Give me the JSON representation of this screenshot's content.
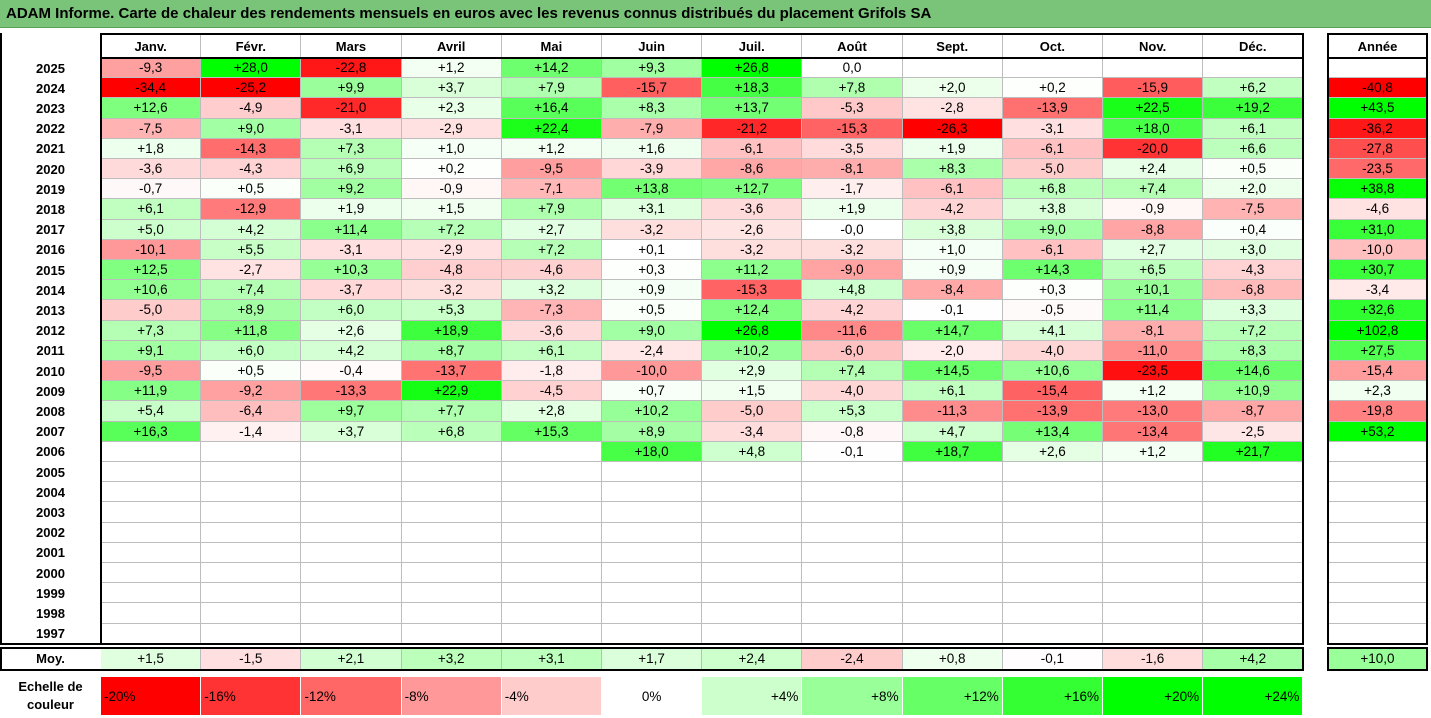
{
  "title": "ADAM Informe. Carte de chaleur des rendements mensuels en euros avec les revenus connus distribués du placement Grifols SA",
  "months": [
    "Janv.",
    "Févr.",
    "Mars",
    "Avril",
    "Mai",
    "Juin",
    "Juil.",
    "Août",
    "Sept.",
    "Oct.",
    "Nov.",
    "Déc."
  ],
  "year_label": "Année",
  "avg_label": "Moy.",
  "scale_label_line1": "Echelle de",
  "scale_label_line2": "couleur",
  "colors": {
    "negative_max": "#ff0000",
    "neutral": "#ffffff",
    "positive_max": "#00ff00"
  },
  "chart_data": {
    "type": "heatmap",
    "title": "ADAM Informe. Carte de chaleur des rendements mensuels en euros avec les revenus connus distribués du placement Grifols SA",
    "columns": [
      "Janv.",
      "Févr.",
      "Mars",
      "Avril",
      "Mai",
      "Juin",
      "Juil.",
      "Août",
      "Sept.",
      "Oct.",
      "Nov.",
      "Déc."
    ],
    "rows": [
      {
        "year": "2025",
        "values": [
          "-9,3",
          "+28,0",
          "-22,8",
          "+1,2",
          "+14,2",
          "+9,3",
          "+26,8",
          "0,0",
          "",
          "",
          "",
          ""
        ],
        "annual": ""
      },
      {
        "year": "2024",
        "values": [
          "-34,4",
          "-25,2",
          "+9,9",
          "+3,7",
          "+7,9",
          "-15,7",
          "+18,3",
          "+7,8",
          "+2,0",
          "+0,2",
          "-15,9",
          "+6,2"
        ],
        "annual": "-40,8"
      },
      {
        "year": "2023",
        "values": [
          "+12,6",
          "-4,9",
          "-21,0",
          "+2,3",
          "+16,4",
          "+8,3",
          "+13,7",
          "-5,3",
          "-2,8",
          "-13,9",
          "+22,5",
          "+19,2"
        ],
        "annual": "+43,5"
      },
      {
        "year": "2022",
        "values": [
          "-7,5",
          "+9,0",
          "-3,1",
          "-2,9",
          "+22,4",
          "-7,9",
          "-21,2",
          "-15,3",
          "-26,3",
          "-3,1",
          "+18,0",
          "+6,1"
        ],
        "annual": "-36,2"
      },
      {
        "year": "2021",
        "values": [
          "+1,8",
          "-14,3",
          "+7,3",
          "+1,0",
          "+1,2",
          "+1,6",
          "-6,1",
          "-3,5",
          "+1,9",
          "-6,1",
          "-20,0",
          "+6,6"
        ],
        "annual": "-27,8"
      },
      {
        "year": "2020",
        "values": [
          "-3,6",
          "-4,3",
          "+6,9",
          "+0,2",
          "-9,5",
          "-3,9",
          "-8,6",
          "-8,1",
          "+8,3",
          "-5,0",
          "+2,4",
          "+0,5"
        ],
        "annual": "-23,5"
      },
      {
        "year": "2019",
        "values": [
          "-0,7",
          "+0,5",
          "+9,2",
          "-0,9",
          "-7,1",
          "+13,8",
          "+12,7",
          "-1,7",
          "-6,1",
          "+6,8",
          "+7,4",
          "+2,0"
        ],
        "annual": "+38,8"
      },
      {
        "year": "2018",
        "values": [
          "+6,1",
          "-12,9",
          "+1,9",
          "+1,5",
          "+7,9",
          "+3,1",
          "-3,6",
          "+1,9",
          "-4,2",
          "+3,8",
          "-0,9",
          "-7,5"
        ],
        "annual": "-4,6"
      },
      {
        "year": "2017",
        "values": [
          "+5,0",
          "+4,2",
          "+11,4",
          "+7,2",
          "+2,7",
          "-3,2",
          "-2,6",
          "-0,0",
          "+3,8",
          "+9,0",
          "-8,8",
          "+0,4"
        ],
        "annual": "+31,0"
      },
      {
        "year": "2016",
        "values": [
          "-10,1",
          "+5,5",
          "-3,1",
          "-2,9",
          "+7,2",
          "+0,1",
          "-3,2",
          "-3,2",
          "+1,0",
          "-6,1",
          "+2,7",
          "+3,0"
        ],
        "annual": "-10,0"
      },
      {
        "year": "2015",
        "values": [
          "+12,5",
          "-2,7",
          "+10,3",
          "-4,8",
          "-4,6",
          "+0,3",
          "+11,2",
          "-9,0",
          "+0,9",
          "+14,3",
          "+6,5",
          "-4,3"
        ],
        "annual": "+30,7"
      },
      {
        "year": "2014",
        "values": [
          "+10,6",
          "+7,4",
          "-3,7",
          "-3,2",
          "+3,2",
          "+0,9",
          "-15,3",
          "+4,8",
          "-8,4",
          "+0,3",
          "+10,1",
          "-6,8"
        ],
        "annual": "-3,4"
      },
      {
        "year": "2013",
        "values": [
          "-5,0",
          "+8,9",
          "+6,0",
          "+5,3",
          "-7,3",
          "+0,5",
          "+12,4",
          "-4,2",
          "-0,1",
          "-0,5",
          "+11,4",
          "+3,3"
        ],
        "annual": "+32,6"
      },
      {
        "year": "2012",
        "values": [
          "+7,3",
          "+11,8",
          "+2,6",
          "+18,9",
          "-3,6",
          "+9,0",
          "+26,8",
          "-11,6",
          "+14,7",
          "+4,1",
          "-8,1",
          "+7,2"
        ],
        "annual": "+102,8"
      },
      {
        "year": "2011",
        "values": [
          "+9,1",
          "+6,0",
          "+4,2",
          "+8,7",
          "+6,1",
          "-2,4",
          "+10,2",
          "-6,0",
          "-2,0",
          "-4,0",
          "-11,0",
          "+8,3"
        ],
        "annual": "+27,5"
      },
      {
        "year": "2010",
        "values": [
          "-9,5",
          "+0,5",
          "-0,4",
          "-13,7",
          "-1,8",
          "-10,0",
          "+2,9",
          "+7,4",
          "+14,5",
          "+10,6",
          "-23,5",
          "+14,6"
        ],
        "annual": "-15,4"
      },
      {
        "year": "2009",
        "values": [
          "+11,9",
          "-9,2",
          "-13,3",
          "+22,9",
          "-4,5",
          "+0,7",
          "+1,5",
          "-4,0",
          "+6,1",
          "-15,4",
          "+1,2",
          "+10,9"
        ],
        "annual": "+2,3"
      },
      {
        "year": "2008",
        "values": [
          "+5,4",
          "-6,4",
          "+9,7",
          "+7,7",
          "+2,8",
          "+10,2",
          "-5,0",
          "+5,3",
          "-11,3",
          "-13,9",
          "-13,0",
          "-8,7"
        ],
        "annual": "-19,8"
      },
      {
        "year": "2007",
        "values": [
          "+16,3",
          "-1,4",
          "+3,7",
          "+6,8",
          "+15,3",
          "+8,9",
          "-3,4",
          "-0,8",
          "+4,7",
          "+13,4",
          "-13,4",
          "-2,5"
        ],
        "annual": "+53,2"
      },
      {
        "year": "2006",
        "values": [
          "",
          "",
          "",
          "",
          "",
          "+18,0",
          "+4,8",
          "-0,1",
          "+18,7",
          "+2,6",
          "+1,2",
          "+21,7"
        ],
        "annual": ""
      },
      {
        "year": "2005",
        "values": [
          "",
          "",
          "",
          "",
          "",
          "",
          "",
          "",
          "",
          "",
          "",
          ""
        ],
        "annual": ""
      },
      {
        "year": "2004",
        "values": [
          "",
          "",
          "",
          "",
          "",
          "",
          "",
          "",
          "",
          "",
          "",
          ""
        ],
        "annual": ""
      },
      {
        "year": "2003",
        "values": [
          "",
          "",
          "",
          "",
          "",
          "",
          "",
          "",
          "",
          "",
          "",
          ""
        ],
        "annual": ""
      },
      {
        "year": "2002",
        "values": [
          "",
          "",
          "",
          "",
          "",
          "",
          "",
          "",
          "",
          "",
          "",
          ""
        ],
        "annual": ""
      },
      {
        "year": "2001",
        "values": [
          "",
          "",
          "",
          "",
          "",
          "",
          "",
          "",
          "",
          "",
          "",
          ""
        ],
        "annual": ""
      },
      {
        "year": "2000",
        "values": [
          "",
          "",
          "",
          "",
          "",
          "",
          "",
          "",
          "",
          "",
          "",
          ""
        ],
        "annual": ""
      },
      {
        "year": "1999",
        "values": [
          "",
          "",
          "",
          "",
          "",
          "",
          "",
          "",
          "",
          "",
          "",
          ""
        ],
        "annual": ""
      },
      {
        "year": "1998",
        "values": [
          "",
          "",
          "",
          "",
          "",
          "",
          "",
          "",
          "",
          "",
          "",
          ""
        ],
        "annual": ""
      },
      {
        "year": "1997",
        "values": [
          "",
          "",
          "",
          "",
          "",
          "",
          "",
          "",
          "",
          "",
          "",
          ""
        ],
        "annual": ""
      }
    ],
    "averages": [
      "+1,5",
      "-1,5",
      "+2,1",
      "+3,2",
      "+3,1",
      "+1,7",
      "+2,4",
      "-2,4",
      "+0,8",
      "-0,1",
      "-1,6",
      "+4,2"
    ],
    "average_annual": "+10,0",
    "color_scale": [
      "-20%",
      "-16%",
      "-12%",
      "-8%",
      "-4%",
      "0%",
      "+4%",
      "+8%",
      "+12%",
      "+16%",
      "+20%",
      "+24%"
    ]
  }
}
